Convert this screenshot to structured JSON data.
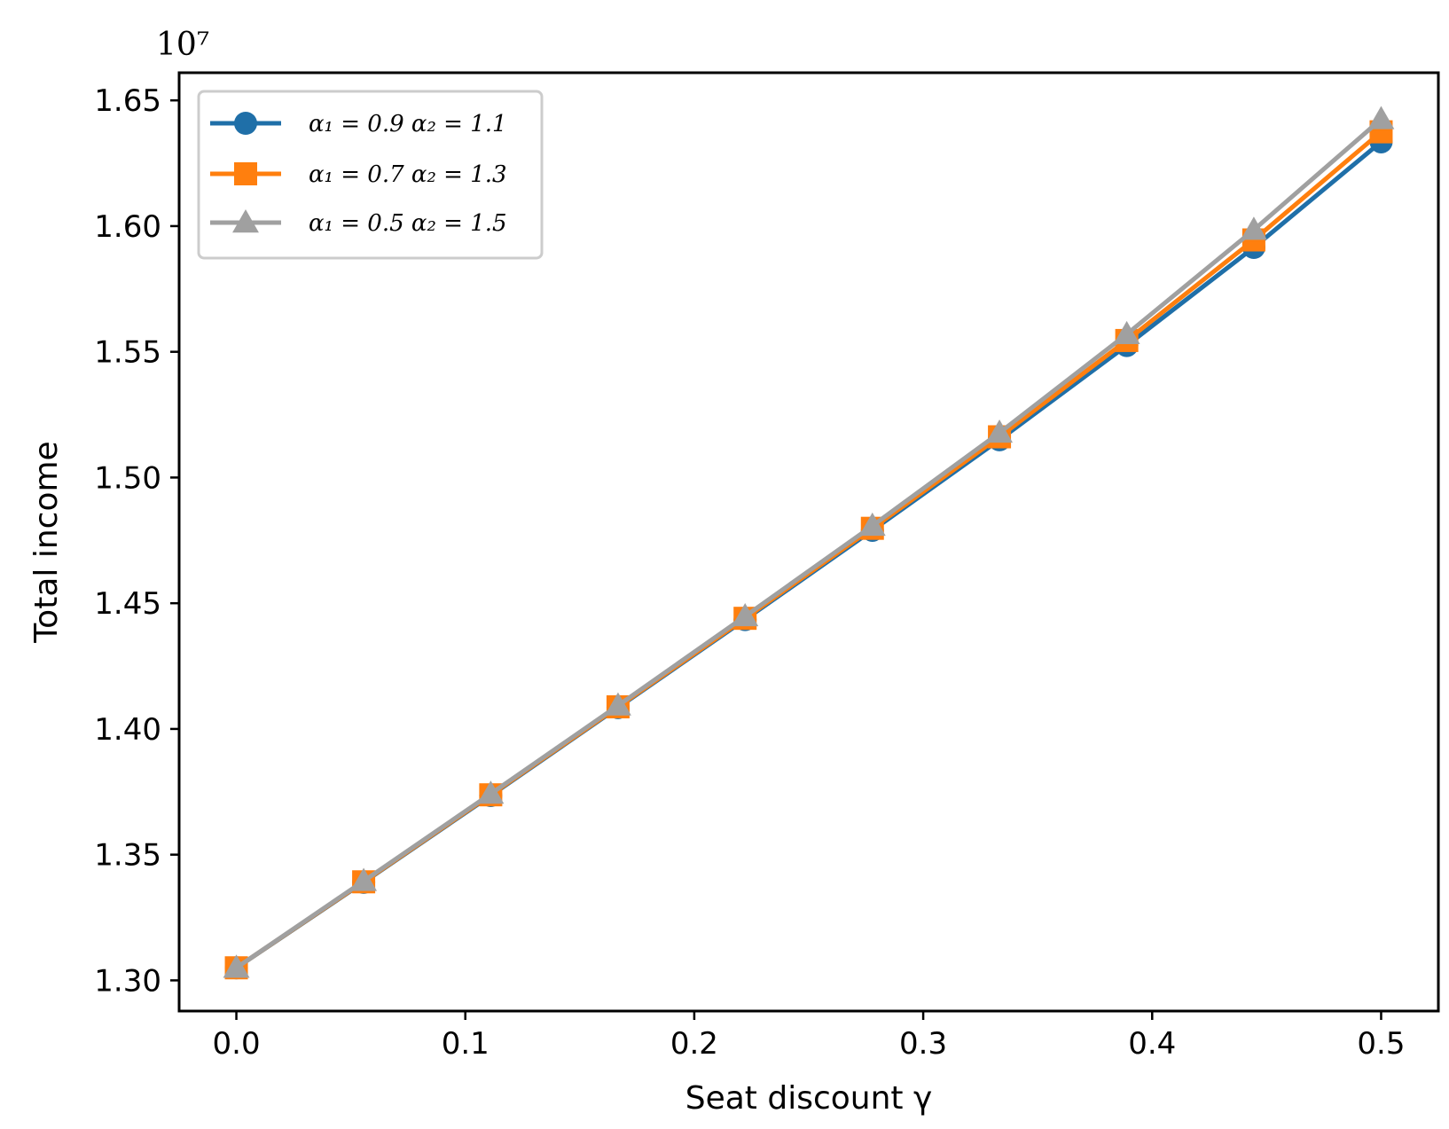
{
  "chart_data": {
    "type": "line",
    "title": "",
    "xlabel": "Seat discount γ",
    "ylabel": "Total income",
    "y_offset_label": "10⁷",
    "xlim": [
      -0.025,
      0.525
    ],
    "ylim": [
      1.2878,
      1.661
    ],
    "x_ticks": [
      0.0,
      0.1,
      0.2,
      0.3,
      0.4,
      0.5
    ],
    "x_tick_labels": [
      "0.0",
      "0.1",
      "0.2",
      "0.3",
      "0.4",
      "0.5"
    ],
    "y_ticks": [
      1.3,
      1.35,
      1.4,
      1.45,
      1.5,
      1.55,
      1.6,
      1.65
    ],
    "y_tick_labels": [
      "1.30",
      "1.35",
      "1.40",
      "1.45",
      "1.50",
      "1.55",
      "1.60",
      "1.65"
    ],
    "grid": false,
    "legend_position": "top-left",
    "x": [
      0.0,
      0.0556,
      0.1111,
      0.1667,
      0.2222,
      0.2778,
      0.3333,
      0.3889,
      0.4444,
      0.5
    ],
    "series": [
      {
        "name": "α₁ = 0.9 α₂ = 1.1",
        "color": "#1f6fa8",
        "marker": "circle",
        "values": [
          1.305,
          1.339,
          1.3735,
          1.4085,
          1.4435,
          1.479,
          1.515,
          1.5525,
          1.5915,
          1.6335
        ]
      },
      {
        "name": "α₁ = 0.7 α₂ = 1.3",
        "color": "#ff7f0e",
        "marker": "square",
        "values": [
          1.305,
          1.3392,
          1.3738,
          1.4088,
          1.444,
          1.4798,
          1.5162,
          1.5545,
          1.5945,
          1.6375
        ]
      },
      {
        "name": "α₁ = 0.5 α₂ = 1.5",
        "color": "#a0a0a0",
        "marker": "triangle",
        "values": [
          1.305,
          1.3395,
          1.3742,
          1.4093,
          1.4448,
          1.4808,
          1.5178,
          1.557,
          1.5985,
          1.6425
        ]
      }
    ]
  }
}
